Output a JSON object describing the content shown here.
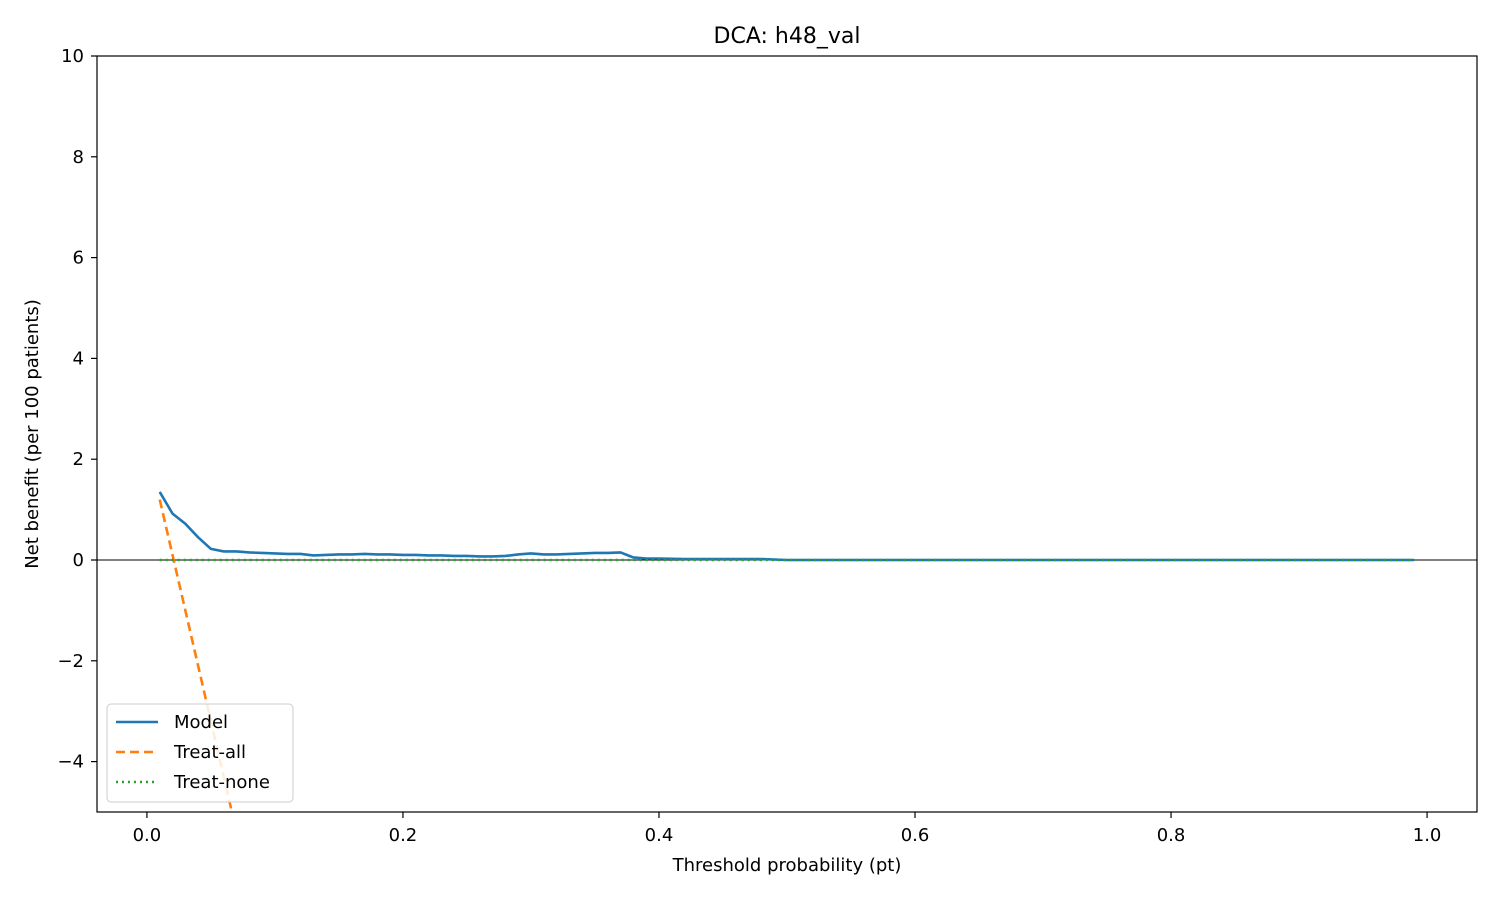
{
  "chart_data": {
    "type": "line",
    "title": "DCA: h48_val",
    "xlabel": "Threshold probability (pt)",
    "ylabel": "Net benefit (per 100 patients)",
    "xlim": [
      -0.039,
      1.039
    ],
    "ylim": [
      -5,
      10
    ],
    "xticks": [
      0.0,
      0.2,
      0.4,
      0.6,
      0.8,
      1.0
    ],
    "xtick_labels": [
      "0.0",
      "0.2",
      "0.4",
      "0.6",
      "0.8",
      "1.0"
    ],
    "yticks": [
      -4,
      -2,
      0,
      2,
      4,
      6,
      8,
      10
    ],
    "ytick_labels": [
      "−4",
      "−2",
      "0",
      "2",
      "4",
      "6",
      "8",
      "10"
    ],
    "grid": false,
    "zero_line": true,
    "legend_position": "lower-left",
    "series": [
      {
        "name": "Model",
        "color": "#1f77b4",
        "style": "solid",
        "x": [
          0.01,
          0.02,
          0.03,
          0.04,
          0.05,
          0.06,
          0.07,
          0.08,
          0.09,
          0.1,
          0.11,
          0.12,
          0.13,
          0.14,
          0.15,
          0.16,
          0.17,
          0.18,
          0.19,
          0.2,
          0.21,
          0.22,
          0.23,
          0.24,
          0.25,
          0.26,
          0.27,
          0.28,
          0.29,
          0.3,
          0.31,
          0.32,
          0.33,
          0.34,
          0.35,
          0.36,
          0.37,
          0.38,
          0.39,
          0.4,
          0.42,
          0.44,
          0.46,
          0.48,
          0.5,
          0.55,
          0.6,
          0.65,
          0.7,
          0.75,
          0.8,
          0.85,
          0.9,
          0.95,
          0.99
        ],
        "y": [
          1.35,
          0.92,
          0.72,
          0.45,
          0.22,
          0.17,
          0.17,
          0.15,
          0.14,
          0.13,
          0.12,
          0.12,
          0.09,
          0.1,
          0.11,
          0.11,
          0.12,
          0.11,
          0.11,
          0.1,
          0.1,
          0.09,
          0.09,
          0.08,
          0.08,
          0.07,
          0.07,
          0.08,
          0.11,
          0.13,
          0.11,
          0.11,
          0.12,
          0.13,
          0.14,
          0.14,
          0.15,
          0.05,
          0.03,
          0.03,
          0.02,
          0.02,
          0.02,
          0.02,
          0.0,
          0.0,
          0.0,
          0.0,
          0.0,
          0.0,
          0.0,
          0.0,
          0.0,
          0.0,
          0.0
        ]
      },
      {
        "name": "Treat-all",
        "color": "#ff7f0e",
        "style": "dashed",
        "x": [
          0.01,
          0.02,
          0.03,
          0.04,
          0.05,
          0.06,
          0.07
        ],
        "y": [
          1.2,
          0.1,
          -1.0,
          -2.1,
          -3.2,
          -4.3,
          -5.4
        ]
      },
      {
        "name": "Treat-none",
        "color": "#2ca02c",
        "style": "dotted",
        "x": [
          0.01,
          0.99
        ],
        "y": [
          0.0,
          0.0
        ]
      }
    ]
  }
}
